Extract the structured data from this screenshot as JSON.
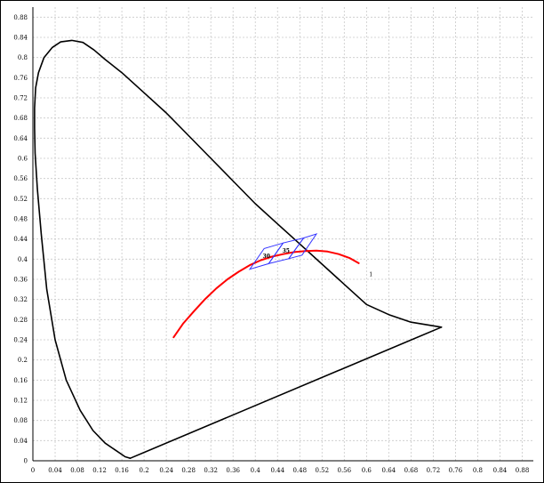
{
  "chart_data": {
    "type": "line",
    "title": "",
    "xlabel": "",
    "ylabel": "",
    "xlim": [
      0,
      0.9
    ],
    "ylim": [
      0,
      0.9
    ],
    "grid": true,
    "xticks": [
      "0",
      "0.04",
      "0.08",
      "0.12",
      "0.16",
      "0.2",
      "0.24",
      "0.28",
      "0.32",
      "0.36",
      "0.4",
      "0.44",
      "0.48",
      "0.52",
      "0.56",
      "0.6",
      "0.64",
      "0.68",
      "0.72",
      "0.76",
      "0.8",
      "0.84",
      "0.88"
    ],
    "yticks": [
      "0",
      "0.04",
      "0.08",
      "0.12",
      "0.16",
      "0.2",
      "0.24",
      "0.28",
      "0.32",
      "0.36",
      "0.4",
      "0.44",
      "0.48",
      "0.52",
      "0.56",
      "0.6",
      "0.64",
      "0.68",
      "0.72",
      "0.76",
      "0.8",
      "0.84",
      "0.88"
    ],
    "colors": {
      "locus": "#000000",
      "planckian": "#ff0000",
      "boxes": "#3333ff",
      "marker": "#cc66cc",
      "grid": "#c8c8c8"
    },
    "series": [
      {
        "key": "spectral-locus",
        "x": [
          0.175,
          0.172,
          0.166,
          0.15,
          0.13,
          0.108,
          0.085,
          0.06,
          0.04,
          0.025,
          0.015,
          0.008,
          0.004,
          0.003,
          0.003,
          0.005,
          0.01,
          0.02,
          0.035,
          0.05,
          0.07,
          0.09,
          0.11,
          0.13,
          0.16,
          0.2,
          0.24,
          0.28,
          0.32,
          0.36,
          0.4,
          0.44,
          0.48,
          0.52,
          0.56,
          0.6,
          0.64,
          0.68,
          0.7347
        ],
        "y": [
          0.005,
          0.006,
          0.008,
          0.02,
          0.035,
          0.06,
          0.1,
          0.16,
          0.24,
          0.34,
          0.45,
          0.54,
          0.61,
          0.66,
          0.7,
          0.74,
          0.77,
          0.8,
          0.82,
          0.831,
          0.834,
          0.83,
          0.815,
          0.796,
          0.77,
          0.73,
          0.69,
          0.645,
          0.6,
          0.555,
          0.51,
          0.47,
          0.43,
          0.39,
          0.35,
          0.31,
          0.29,
          0.275,
          0.265
        ]
      },
      {
        "key": "line-of-purples",
        "x": [
          0.7347,
          0.175
        ],
        "y": [
          0.265,
          0.005
        ]
      },
      {
        "key": "planckian-locus",
        "x": [
          0.253,
          0.27,
          0.29,
          0.31,
          0.33,
          0.35,
          0.37,
          0.39,
          0.41,
          0.43,
          0.45,
          0.47,
          0.49,
          0.51,
          0.53,
          0.55,
          0.57,
          0.586
        ],
        "y": [
          0.245,
          0.272,
          0.297,
          0.321,
          0.342,
          0.36,
          0.375,
          0.388,
          0.398,
          0.405,
          0.41,
          0.414,
          0.416,
          0.417,
          0.415,
          0.41,
          0.402,
          0.392
        ]
      }
    ],
    "regions": [
      {
        "label": "30",
        "corners": [
          [
            0.39,
            0.38
          ],
          [
            0.424,
            0.391
          ],
          [
            0.45,
            0.432
          ],
          [
            0.416,
            0.421
          ]
        ]
      },
      {
        "label": "35",
        "corners": [
          [
            0.424,
            0.391
          ],
          [
            0.46,
            0.401
          ],
          [
            0.487,
            0.442
          ],
          [
            0.45,
            0.432
          ]
        ]
      },
      {
        "label": "",
        "corners": [
          [
            0.46,
            0.401
          ],
          [
            0.484,
            0.408
          ],
          [
            0.51,
            0.45
          ],
          [
            0.487,
            0.442
          ]
        ]
      }
    ],
    "markers": [
      {
        "label": "1",
        "x": 0.608,
        "y": 0.37
      }
    ]
  }
}
